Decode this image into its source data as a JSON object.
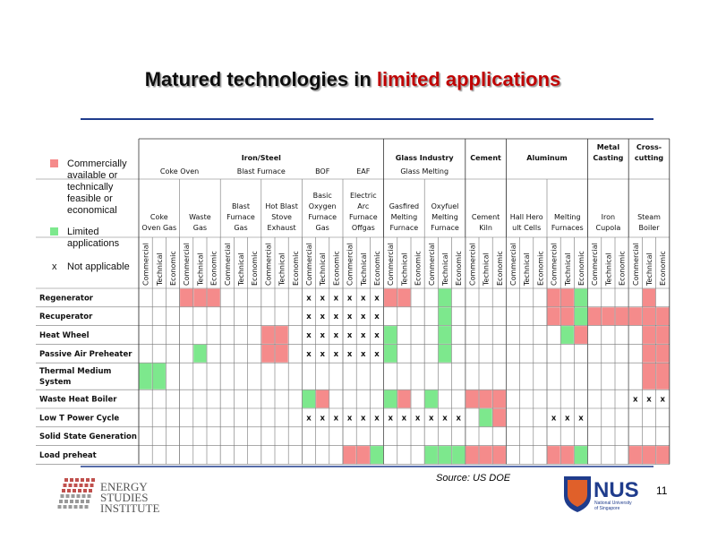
{
  "title": {
    "prefix": "Matured technologies in ",
    "highlight": "limited applications"
  },
  "legend": [
    {
      "lines": [
        "Commercially",
        "available or",
        "technically",
        "feasible or",
        "economical"
      ],
      "color": "#f58b8b"
    },
    {
      "lines": [
        "Limited",
        "applications"
      ],
      "color": "#7de88d"
    },
    {
      "symbol": "x",
      "lines": [
        "Not applicable"
      ]
    }
  ],
  "table": {
    "criteria": [
      "Commercial",
      "Technical",
      "Economic"
    ],
    "sectors": [
      {
        "lines": [
          "Iron/Steel"
        ],
        "subsectors": [
          {
            "name": "Coke Oven",
            "processes": [
              [
                "Coke",
                "Oven Gas"
              ],
              [
                "Waste",
                "Gas"
              ]
            ]
          },
          {
            "name": "Blast Furnace",
            "processes": [
              [
                "Blast",
                "Furnace",
                "Gas"
              ],
              [
                "Hot Blast",
                "Stove",
                "Exhaust"
              ]
            ]
          },
          {
            "name": "BOF",
            "processes": [
              [
                "Basic",
                "Oxygen",
                "Furnace",
                "Gas"
              ]
            ]
          },
          {
            "name": "EAF",
            "processes": [
              [
                "Electric",
                "Arc",
                "Furnace",
                "Offgas"
              ]
            ]
          }
        ]
      },
      {
        "lines": [
          "Glass Industry"
        ],
        "subsectors": [
          {
            "name": "Glass Melting",
            "processes": [
              [
                "Gasfired",
                "Melting",
                "Furnace"
              ],
              [
                "Oxyfuel",
                "Melting",
                "Furnace"
              ]
            ]
          }
        ]
      },
      {
        "lines": [
          "Cement"
        ],
        "subsectors": [
          {
            "processes": [
              [
                "Cement",
                "Kiln"
              ]
            ]
          }
        ]
      },
      {
        "lines": [
          "Aluminum"
        ],
        "subsectors": [
          {
            "processes": [
              [
                "Hall Hero",
                "ult Cells"
              ],
              [
                "Melting",
                "Furnaces"
              ]
            ]
          }
        ]
      },
      {
        "lines": [
          "Metal",
          "Casting"
        ],
        "subsectors": [
          {
            "processes": [
              [
                "Iron",
                "Cupola"
              ]
            ]
          }
        ]
      },
      {
        "lines": [
          "Cross-",
          "cutting"
        ],
        "subsectors": [
          {
            "processes": [
              [
                "Steam",
                "Boiler"
              ]
            ]
          }
        ]
      }
    ],
    "rows": [
      {
        "lines": [
          "Regenerator"
        ],
        "cells": [
          null,
          null,
          null,
          0,
          0,
          0,
          null,
          null,
          null,
          null,
          null,
          null,
          2,
          2,
          2,
          2,
          2,
          2,
          0,
          0,
          null,
          null,
          1,
          null,
          null,
          null,
          null,
          null,
          null,
          null,
          0,
          0,
          1,
          null,
          null,
          null,
          null,
          0,
          null
        ]
      },
      {
        "lines": [
          "Recuperator"
        ],
        "cells": [
          null,
          null,
          null,
          null,
          null,
          null,
          null,
          null,
          null,
          null,
          null,
          null,
          2,
          2,
          2,
          2,
          2,
          2,
          null,
          null,
          null,
          null,
          1,
          null,
          null,
          null,
          null,
          null,
          null,
          null,
          0,
          0,
          1,
          0,
          0,
          0,
          0,
          0,
          0
        ]
      },
      {
        "lines": [
          "Heat Wheel"
        ],
        "cells": [
          null,
          null,
          null,
          null,
          null,
          null,
          null,
          null,
          null,
          0,
          0,
          null,
          2,
          2,
          2,
          2,
          2,
          2,
          1,
          null,
          null,
          null,
          1,
          null,
          null,
          null,
          null,
          null,
          null,
          null,
          null,
          1,
          0,
          null,
          null,
          null,
          null,
          0,
          0
        ]
      },
      {
        "lines": [
          "Passive Air Preheater"
        ],
        "cells": [
          null,
          null,
          null,
          null,
          1,
          null,
          null,
          null,
          null,
          0,
          0,
          null,
          2,
          2,
          2,
          2,
          2,
          2,
          1,
          null,
          null,
          null,
          1,
          null,
          null,
          null,
          null,
          null,
          null,
          null,
          null,
          null,
          null,
          null,
          null,
          null,
          null,
          0,
          0
        ]
      },
      {
        "lines": [
          "Thermal Medium",
          "System"
        ],
        "cells": [
          1,
          1,
          null,
          null,
          null,
          null,
          null,
          null,
          null,
          null,
          null,
          null,
          null,
          null,
          null,
          null,
          null,
          null,
          null,
          null,
          null,
          null,
          null,
          null,
          null,
          null,
          null,
          null,
          null,
          null,
          null,
          null,
          null,
          null,
          null,
          null,
          null,
          0,
          0
        ]
      },
      {
        "lines": [
          "Waste Heat Boiler"
        ],
        "cells": [
          null,
          null,
          null,
          null,
          null,
          null,
          null,
          null,
          null,
          null,
          null,
          null,
          1,
          0,
          null,
          null,
          null,
          null,
          1,
          0,
          null,
          1,
          null,
          null,
          0,
          0,
          0,
          null,
          null,
          null,
          null,
          null,
          null,
          null,
          null,
          null,
          2,
          2,
          2
        ]
      },
      {
        "lines": [
          "Low T Power Cycle"
        ],
        "cells": [
          null,
          null,
          null,
          null,
          null,
          null,
          null,
          null,
          null,
          null,
          null,
          null,
          2,
          2,
          2,
          2,
          2,
          2,
          2,
          2,
          2,
          2,
          2,
          2,
          null,
          1,
          0,
          null,
          null,
          null,
          2,
          2,
          2,
          null,
          null,
          null,
          null,
          null,
          null
        ]
      },
      {
        "lines": [
          "Solid State Generation"
        ],
        "cells": [
          null,
          null,
          null,
          null,
          null,
          null,
          null,
          null,
          null,
          null,
          null,
          null,
          null,
          null,
          null,
          null,
          null,
          null,
          null,
          null,
          null,
          null,
          null,
          null,
          null,
          null,
          null,
          null,
          null,
          null,
          null,
          null,
          null,
          null,
          null,
          null,
          null,
          null,
          null
        ]
      },
      {
        "lines": [
          "Load preheat"
        ],
        "cells": [
          null,
          null,
          null,
          null,
          null,
          null,
          null,
          null,
          null,
          null,
          null,
          null,
          null,
          null,
          null,
          0,
          0,
          1,
          null,
          null,
          null,
          1,
          1,
          1,
          0,
          0,
          0,
          null,
          null,
          null,
          0,
          0,
          1,
          null,
          null,
          null,
          0,
          0,
          0
        ]
      }
    ]
  },
  "footer": {
    "source": "Source: US DOE",
    "page": "11",
    "esi": [
      "ENERGY",
      "STUDIES",
      "INSTITUTE"
    ],
    "nus": {
      "name": "NUS",
      "lines": [
        "National University",
        "of Singapore"
      ]
    }
  }
}
